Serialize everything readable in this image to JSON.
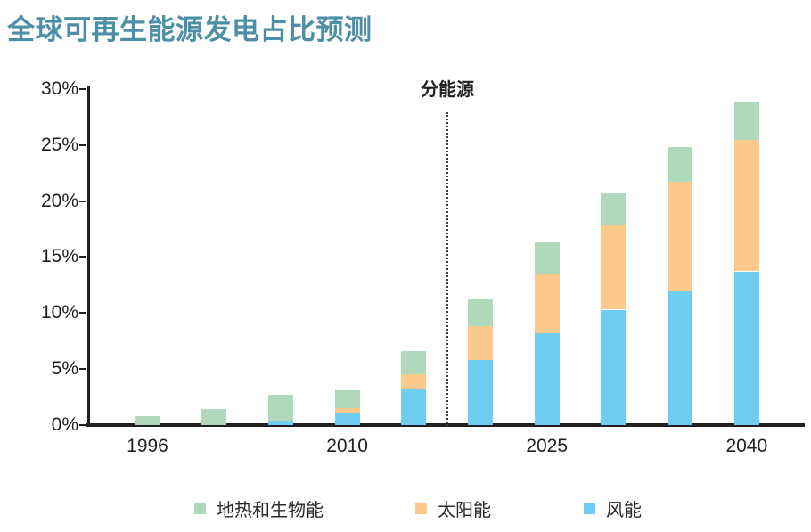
{
  "title": "全球可再生能源发电占比预测",
  "annotation": "分能源",
  "colors": {
    "title": "#4d8fa6",
    "axis": "#231f20",
    "wind": "#6fcdf2",
    "solar": "#fcc98b",
    "geo_bio": "#b0d9bc"
  },
  "chart_data": {
    "type": "bar",
    "stacked": true,
    "title": "全球可再生能源发电占比预测",
    "annotation": "分能源",
    "ylabel": "",
    "xlabel": "",
    "ylim": [
      0,
      30
    ],
    "y_ticks": [
      "0%",
      "5%",
      "10%",
      "15%",
      "20%",
      "25%",
      "30%"
    ],
    "grid": false,
    "bar_count": 10,
    "x_labels": [
      {
        "label": "1996",
        "bar_index": 0
      },
      {
        "label": "2010",
        "bar_index": 3
      },
      {
        "label": "2025",
        "bar_index": 6
      },
      {
        "label": "2040",
        "bar_index": 9
      }
    ],
    "separator_between_bars": [
      4,
      5
    ],
    "series": [
      {
        "name": "风能",
        "key": "wind",
        "values": [
          0,
          0,
          0.4,
          1.1,
          3.2,
          5.8,
          8.2,
          10.3,
          12.0,
          13.7
        ]
      },
      {
        "name": "太阳能",
        "key": "solar",
        "values": [
          0,
          0,
          0,
          0.4,
          1.3,
          3.0,
          5.3,
          7.5,
          9.7,
          11.8
        ]
      },
      {
        "name": "地热和生物能",
        "key": "geo_bio",
        "values": [
          0.8,
          1.4,
          2.3,
          1.6,
          2.1,
          2.5,
          2.8,
          2.9,
          3.1,
          3.4
        ]
      }
    ],
    "totals": [
      0.8,
      1.4,
      2.7,
      3.1,
      6.6,
      11.3,
      16.3,
      20.7,
      24.8,
      28.9
    ],
    "legend_position": "bottom",
    "legend": [
      {
        "label": "地热和生物能",
        "key": "geo_bio"
      },
      {
        "label": "太阳能",
        "key": "solar"
      },
      {
        "label": "风能",
        "key": "wind"
      }
    ]
  }
}
